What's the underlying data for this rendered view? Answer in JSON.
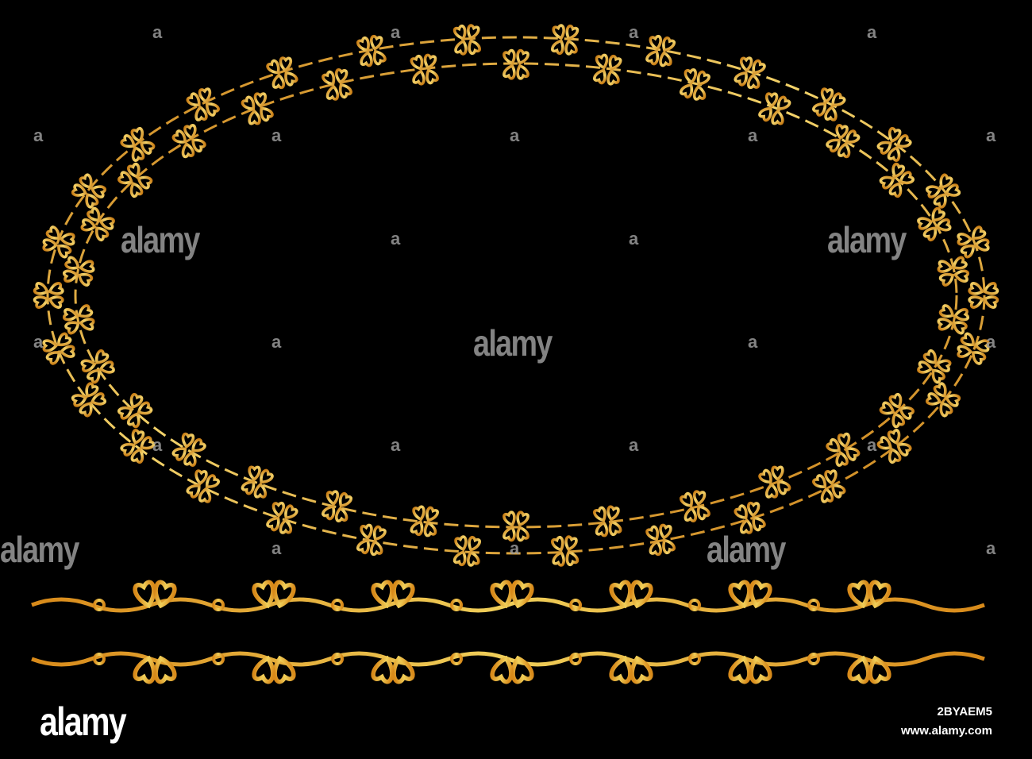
{
  "image": {
    "background_color": "#000000",
    "gold_light": "#f3d36a",
    "gold_dark": "#c77a12",
    "ornament": "heart-and-scroll-motif",
    "watermark_text": "alamy",
    "watermark_mark": "a"
  },
  "footer": {
    "logo": "alamy",
    "stock_id": "2BYAEM5",
    "website": "www.alamy.com"
  }
}
